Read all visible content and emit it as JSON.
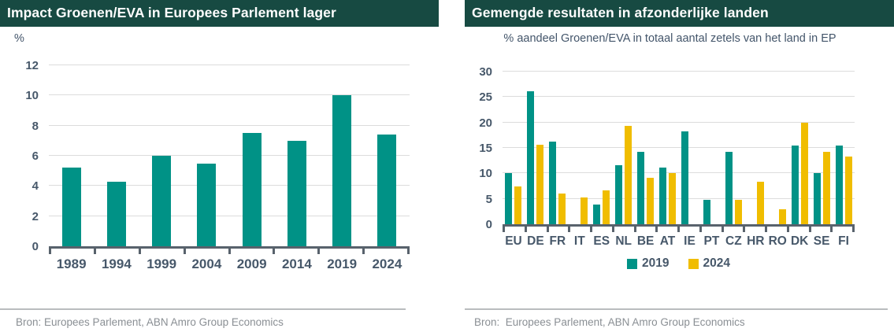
{
  "colors": {
    "teal": "#009286",
    "yellow": "#f0bd00",
    "header_bg": "#174a42",
    "axis_text": "#47586a",
    "gridline": "#dcdcdc",
    "axis_line": "#58626c",
    "source_text": "#8a8f94"
  },
  "left_panel": {
    "title": "Impact Groenen/EVA in Europees Parlement lager",
    "subtitle": "%",
    "source": "Bron: Europees Parlement, ABN Amro Group Economics"
  },
  "right_panel": {
    "title": "Gemengde resultaten in afzonderlijke landen",
    "subtitle": "% aandeel Groenen/EVA in totaal aantal zetels van het land in EP",
    "source": "Bron:  Europees Parlement, ABN Amro Group Economics",
    "legend": [
      {
        "label": "2019",
        "color": "#009286"
      },
      {
        "label": "2024",
        "color": "#f0bd00"
      }
    ]
  },
  "chart_data": [
    {
      "type": "bar",
      "title": "Impact Groenen/EVA in Europees Parlement lager",
      "ylabel": "%",
      "categories": [
        "1989",
        "1994",
        "1999",
        "2004",
        "2009",
        "2014",
        "2019",
        "2024"
      ],
      "values": [
        5.2,
        4.3,
        6.0,
        5.5,
        7.5,
        7.0,
        10.0,
        7.4
      ],
      "bar_color": "#009286",
      "ylim": [
        0,
        12
      ],
      "yticks": [
        0,
        2,
        4,
        6,
        8,
        10,
        12
      ],
      "grid": true,
      "legend_position": "none"
    },
    {
      "type": "bar",
      "title": "Gemengde resultaten in afzonderlijke landen",
      "subtitle": "% aandeel Groenen/EVA in totaal aantal zetels van het land in EP",
      "categories": [
        "EU",
        "DE",
        "FR",
        "IT",
        "ES",
        "NL",
        "BE",
        "AT",
        "IE",
        "PT",
        "CZ",
        "HR",
        "RO",
        "DK",
        "SE",
        "FI"
      ],
      "series": [
        {
          "name": "2019",
          "color": "#009286",
          "values": [
            10.0,
            26.1,
            16.2,
            null,
            3.8,
            11.6,
            14.3,
            11.1,
            18.2,
            4.8,
            14.3,
            null,
            null,
            15.4,
            10.0,
            15.4
          ]
        },
        {
          "name": "2024",
          "color": "#f0bd00",
          "values": [
            7.4,
            15.6,
            6.1,
            5.3,
            6.7,
            19.4,
            9.1,
            10.0,
            null,
            null,
            4.8,
            8.3,
            3.0,
            20.0,
            14.3,
            13.3
          ]
        }
      ],
      "ylim": [
        0,
        30
      ],
      "yticks": [
        0,
        5,
        10,
        15,
        20,
        25,
        30
      ],
      "grid": true,
      "legend_position": "bottom"
    }
  ]
}
